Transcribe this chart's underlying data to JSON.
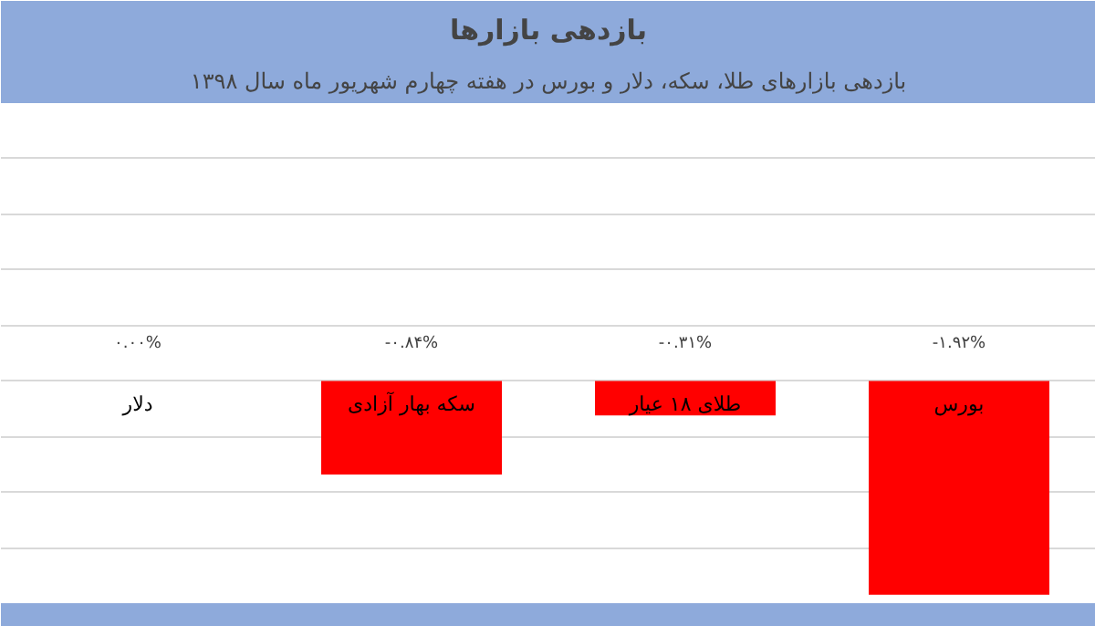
{
  "chart_data": {
    "type": "bar",
    "title": "بازدهی بازارها",
    "subtitle": "بازدهی بازارهای طلا، سکه، دلار و بورس در هفته چهارم شهریور ماه سال ۱۳۹۸",
    "categories": [
      "دلار",
      "سکه بهار آزادی",
      "طلای ۱۸ عیار",
      "بورس"
    ],
    "values": [
      0.0,
      -0.84,
      -0.31,
      -1.92
    ],
    "color": "#ff0000",
    "value_labels": [
      "۰.۰۰%",
      "-۰.۸۴%",
      "-۰.۳۱%",
      "-۱.۹۲%"
    ],
    "grid": "y",
    "tick_labels": false
  }
}
